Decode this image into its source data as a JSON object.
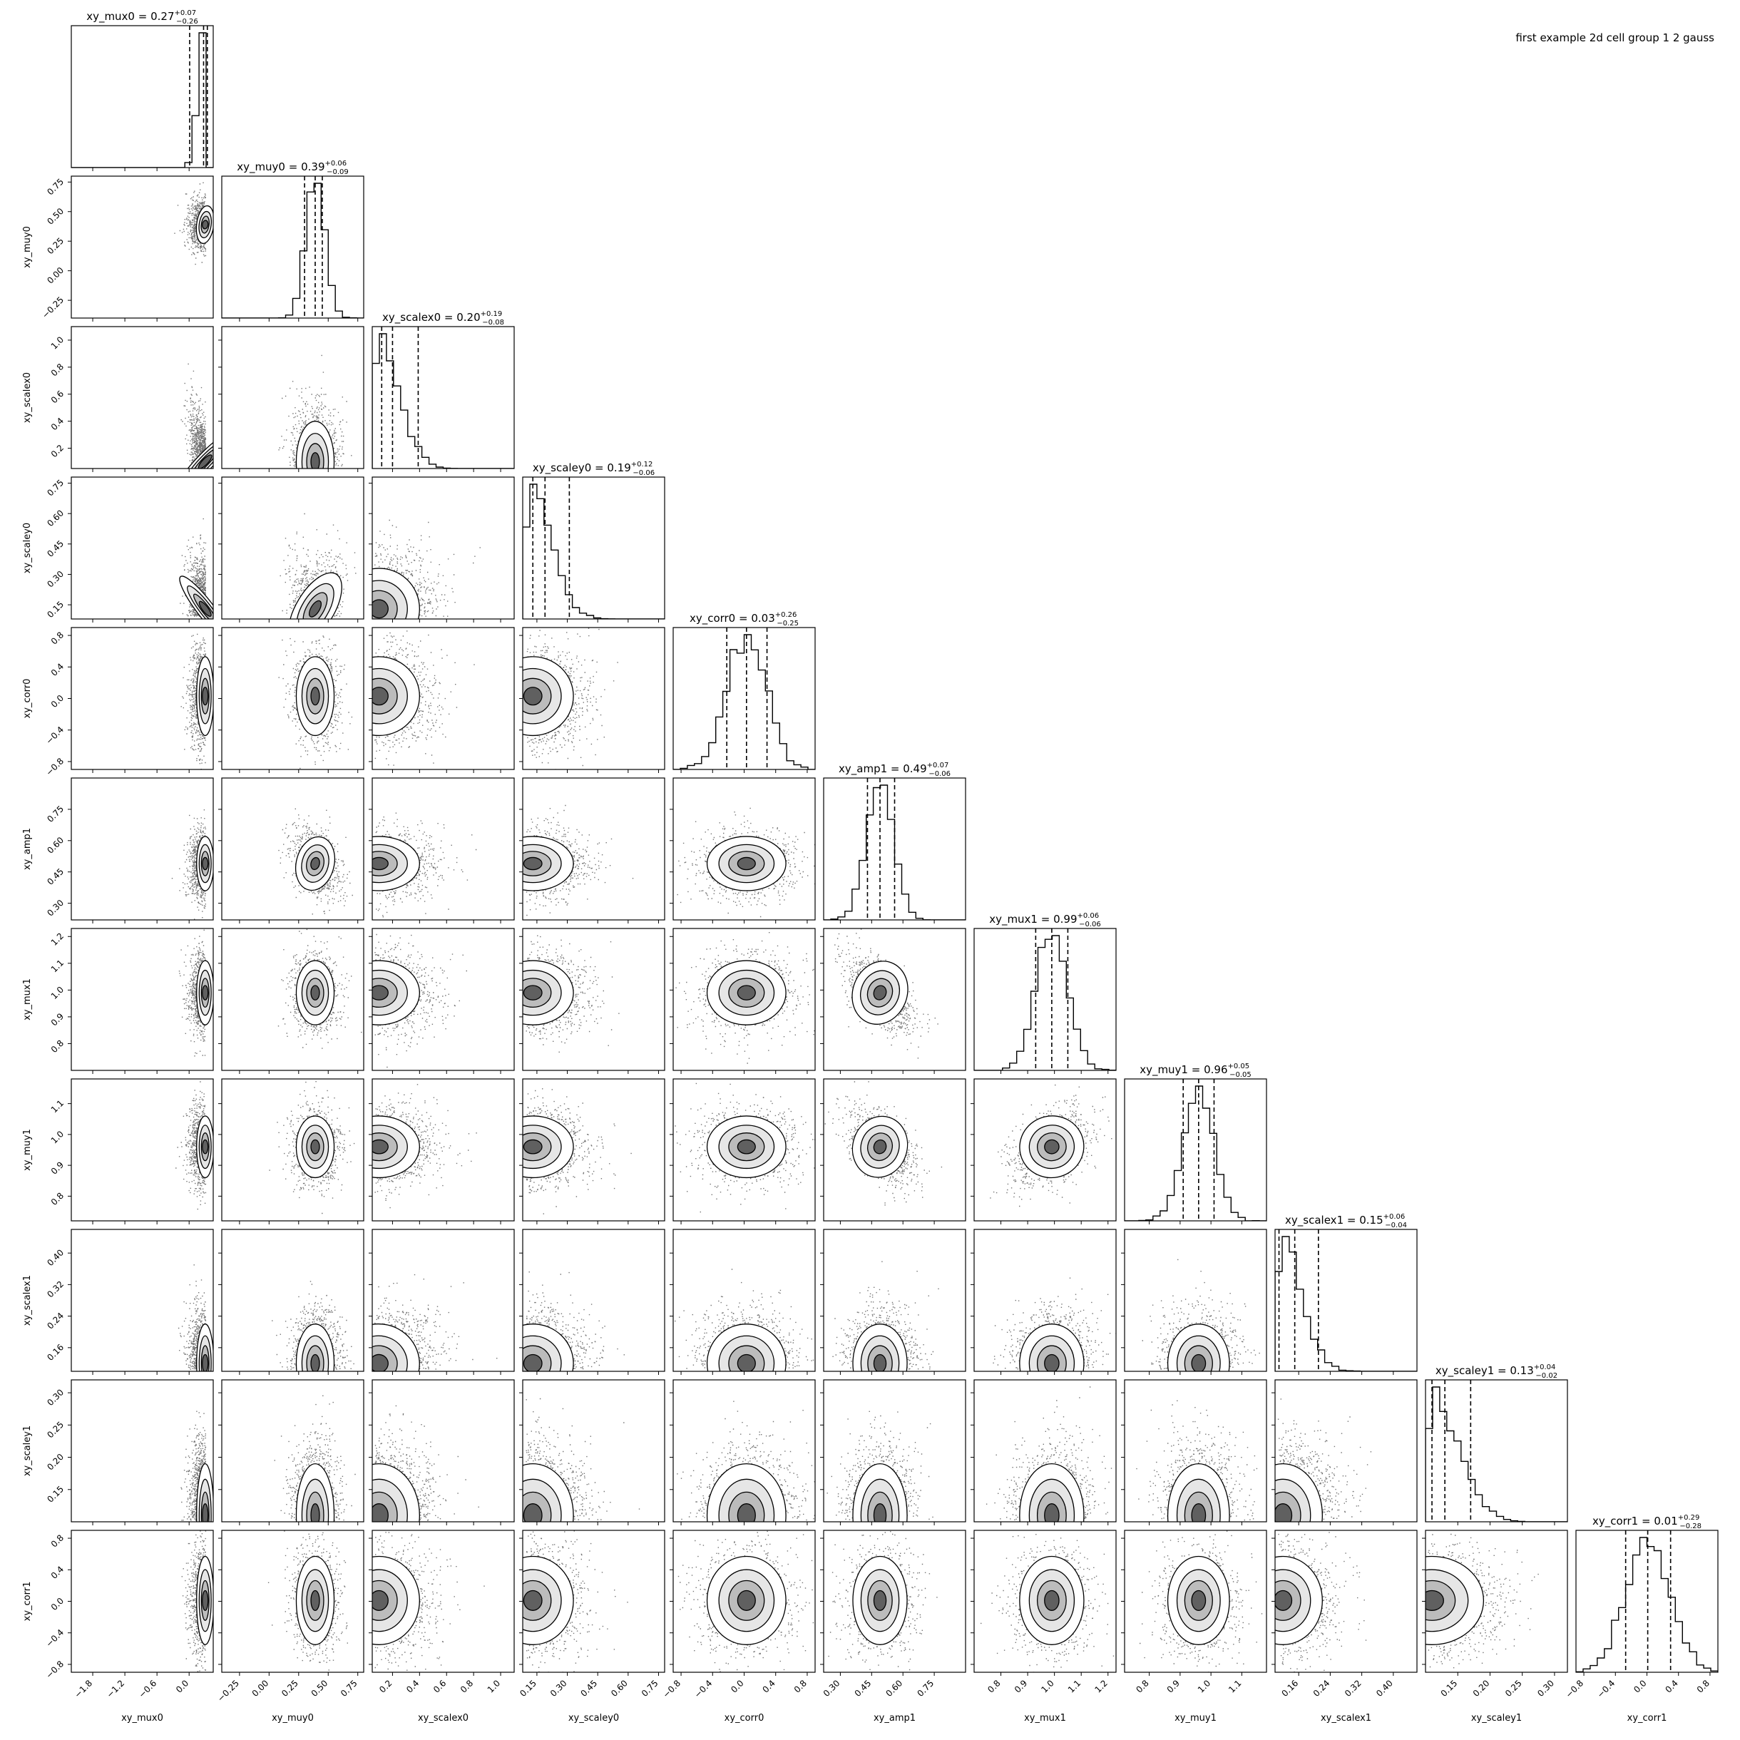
{
  "figure": {
    "title": "first example 2d cell group 1 2 gauss"
  },
  "chart_data": {
    "type": "corner",
    "params": [
      {
        "name": "xy_mux0",
        "lim": [
          -2.2,
          0.45
        ],
        "ticks": [
          -1.8,
          -1.2,
          -0.6,
          0.0
        ],
        "tick_labels": [
          "−1.8",
          "−1.2",
          "−0.6",
          "0.0"
        ],
        "median": 0.27,
        "plus": 0.07,
        "minus": 0.26,
        "title_value": "0.27",
        "title_plus": "+0.07",
        "title_minus": "−0.26",
        "mode": 0.3,
        "sigma": 0.08,
        "skew": "left",
        "peak_pos": 0.88
      },
      {
        "name": "xy_muy0",
        "lim": [
          -0.4,
          0.8
        ],
        "ticks": [
          -0.25,
          0.0,
          0.25,
          0.5,
          0.75
        ],
        "tick_labels": [
          "−0.25",
          "0.00",
          "0.25",
          "0.50",
          "0.75"
        ],
        "median": 0.39,
        "plus": 0.06,
        "minus": 0.09,
        "title_value": "0.39",
        "title_plus": "+0.06",
        "title_minus": "−0.09",
        "mode": 0.39,
        "sigma": 0.08,
        "skew": "none",
        "peak_pos": 0.66
      },
      {
        "name": "xy_scalex0",
        "lim": [
          0.05,
          1.1
        ],
        "ticks": [
          0.2,
          0.4,
          0.6,
          0.8,
          1.0
        ],
        "tick_labels": [
          "0.2",
          "0.4",
          "0.6",
          "0.8",
          "1.0"
        ],
        "median": 0.2,
        "plus": 0.19,
        "minus": 0.08,
        "title_value": "0.20",
        "title_plus": "+0.19",
        "title_minus": "−0.08",
        "mode": 0.1,
        "sigma": 0.15,
        "skew": "right",
        "peak_pos": 0.04
      },
      {
        "name": "xy_scaley0",
        "lim": [
          0.08,
          0.78
        ],
        "ticks": [
          0.15,
          0.3,
          0.45,
          0.6,
          0.75
        ],
        "tick_labels": [
          "0.15",
          "0.30",
          "0.45",
          "0.60",
          "0.75"
        ],
        "median": 0.19,
        "plus": 0.12,
        "minus": 0.06,
        "title_value": "0.19",
        "title_plus": "+0.12",
        "title_minus": "−0.06",
        "mode": 0.13,
        "sigma": 0.1,
        "skew": "right",
        "peak_pos": 0.08
      },
      {
        "name": "xy_corr0",
        "lim": [
          -0.9,
          0.9
        ],
        "ticks": [
          -0.8,
          -0.4,
          0.0,
          0.4,
          0.8
        ],
        "tick_labels": [
          "−0.8",
          "−0.4",
          "0.0",
          "0.4",
          "0.8"
        ],
        "median": 0.03,
        "plus": 0.26,
        "minus": 0.25,
        "title_value": "0.03",
        "title_plus": "+0.26",
        "title_minus": "−0.25",
        "mode": 0.03,
        "sigma": 0.25,
        "skew": "none",
        "peak_pos": 0.51
      },
      {
        "name": "xy_amp1",
        "lim": [
          0.22,
          0.9
        ],
        "ticks": [
          0.3,
          0.45,
          0.6,
          0.75
        ],
        "tick_labels": [
          "0.30",
          "0.45",
          "0.60",
          "0.75"
        ],
        "median": 0.49,
        "plus": 0.07,
        "minus": 0.06,
        "title_value": "0.49",
        "title_plus": "+0.07",
        "title_minus": "−0.06",
        "mode": 0.49,
        "sigma": 0.065,
        "skew": "none",
        "peak_pos": 0.42
      },
      {
        "name": "xy_mux1",
        "lim": [
          0.7,
          1.23
        ],
        "ticks": [
          0.8,
          0.9,
          1.0,
          1.1,
          1.2
        ],
        "tick_labels": [
          "0.8",
          "0.9",
          "1.0",
          "1.1",
          "1.2"
        ],
        "median": 0.99,
        "plus": 0.06,
        "minus": 0.06,
        "title_value": "0.99",
        "title_plus": "+0.06",
        "title_minus": "−0.06",
        "mode": 0.99,
        "sigma": 0.06,
        "skew": "none",
        "peak_pos": 0.55
      },
      {
        "name": "xy_muy1",
        "lim": [
          0.72,
          1.18
        ],
        "ticks": [
          0.8,
          0.9,
          1.0,
          1.1
        ],
        "tick_labels": [
          "0.8",
          "0.9",
          "1.0",
          "1.1"
        ],
        "median": 0.96,
        "plus": 0.05,
        "minus": 0.05,
        "title_value": "0.96",
        "title_plus": "+0.05",
        "title_minus": "−0.05",
        "mode": 0.96,
        "sigma": 0.05,
        "skew": "none",
        "peak_pos": 0.52
      },
      {
        "name": "xy_scalex1",
        "lim": [
          0.1,
          0.46
        ],
        "ticks": [
          0.16,
          0.24,
          0.32,
          0.4
        ],
        "tick_labels": [
          "0.16",
          "0.24",
          "0.32",
          "0.40"
        ],
        "median": 0.15,
        "plus": 0.06,
        "minus": 0.04,
        "title_value": "0.15",
        "title_plus": "+0.06",
        "title_minus": "−0.04",
        "mode": 0.12,
        "sigma": 0.05,
        "skew": "right",
        "peak_pos": 0.08
      },
      {
        "name": "xy_scaley1",
        "lim": [
          0.1,
          0.32
        ],
        "ticks": [
          0.15,
          0.2,
          0.25,
          0.3
        ],
        "tick_labels": [
          "0.15",
          "0.20",
          "0.25",
          "0.30"
        ],
        "median": 0.13,
        "plus": 0.04,
        "minus": 0.02,
        "title_value": "0.13",
        "title_plus": "+0.04",
        "title_minus": "−0.02",
        "mode": 0.11,
        "sigma": 0.04,
        "skew": "right",
        "peak_pos": 0.08
      },
      {
        "name": "xy_corr1",
        "lim": [
          -0.9,
          0.9
        ],
        "ticks": [
          -0.8,
          -0.4,
          0.0,
          0.4,
          0.8
        ],
        "tick_labels": [
          "−0.8",
          "−0.4",
          "0.0",
          "0.4",
          "0.8"
        ],
        "median": 0.01,
        "plus": 0.29,
        "minus": 0.28,
        "title_value": "0.01",
        "title_plus": "+0.29",
        "title_minus": "−0.28",
        "mode": 0.01,
        "sigma": 0.28,
        "skew": "none",
        "peak_pos": 0.5
      }
    ],
    "correlations": {
      "xy_mux0|xy_muy0": -0.1,
      "xy_mux0|xy_scalex0": -0.7,
      "xy_mux0|xy_scaley0": 0.4,
      "xy_muy0|xy_scaley0": -0.6,
      "xy_scalex0|xy_scaley0": -0.3,
      "xy_amp1|xy_mux1": -0.6,
      "xy_amp1|xy_muy1": -0.5,
      "xy_mux1|xy_muy1": 0.4,
      "xy_muy0|xy_amp1": -0.3,
      "xy_scalex0|xy_scalex1": -0.4
    },
    "grid": false
  }
}
